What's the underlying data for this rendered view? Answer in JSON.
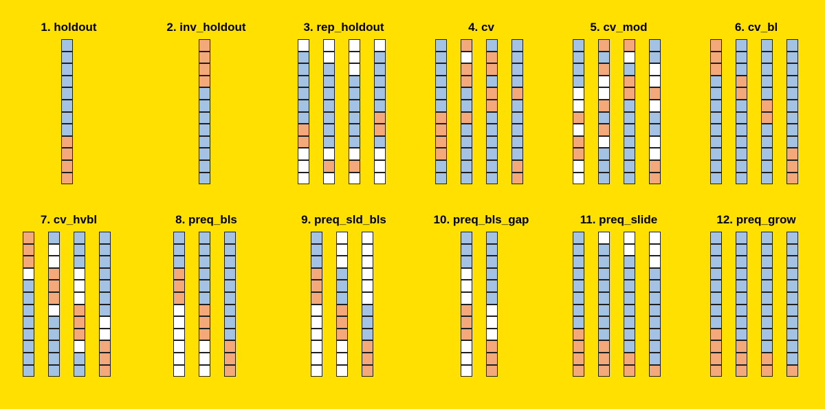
{
  "colors": {
    "train": "#A4C2E3",
    "test": "#F4A97B",
    "unused": "#FFFFFF",
    "background": "#FFE000"
  },
  "legend_codes": {
    "T": "train",
    "E": "test",
    "U": "unused"
  },
  "panels": [
    {
      "title": "1. holdout",
      "columns": [
        "TTTTTTTTEEEE"
      ]
    },
    {
      "title": "2. inv_holdout",
      "columns": [
        "EEEETTTTTTTT"
      ]
    },
    {
      "title": "3. rep_holdout",
      "columns": [
        "UTTTTTTEEUUU",
        "UUTTTTTTTUEU",
        "UUUTTTTTTUEU",
        "UTTTTTEETUUU"
      ]
    },
    {
      "title": "4. cv",
      "columns": [
        "TTTTTTEEEETT",
        "EUEETTETTTTT",
        "TEETEETTTTTT",
        "TTTTETTTTTEE"
      ]
    },
    {
      "title": "5. cv_mod",
      "columns": [
        "TTTTUUEUEEUU",
        "ETEUUETEUTTT",
        "EUTEETTTTTTT",
        "TTUUEUTTUUEE"
      ]
    },
    {
      "title": "6. cv_bl",
      "columns": [
        "EEETTTTTTTTT",
        "TTTEETTTTTTT",
        "TTTTTEETTTTT",
        "TTTTTTTTTEEE"
      ]
    },
    {
      "title": "7. cv_hvbl",
      "columns": [
        "EEEUTTTTTTTT",
        "TUUEEEUTTTTT",
        "TTTUUUEEEUTT",
        "TTTTTTTUUEEE"
      ]
    },
    {
      "title": "8. preq_bls",
      "columns": [
        "TTTEEEUUUUUU",
        "TTTTTTEEEUUU",
        "TTTTTTTTTEEE"
      ]
    },
    {
      "title": "9. preq_sld_bls",
      "columns": [
        "TTTEEEUUUUUU",
        "UUUTTTEEEUUU",
        "UUUUUUTTTEEE"
      ]
    },
    {
      "title": "10. preq_bls_gap",
      "columns": [
        "TTTUUUEEEUUU",
        "TTTTTTUUUEEE"
      ]
    },
    {
      "title": "11. preq_slide",
      "columns": [
        "TTTTTTTTEEEE",
        "UTTTTTTTTEEE",
        "UUTTTTTTTTEE",
        "UUUTTTTTTTTE"
      ]
    },
    {
      "title": "12. preq_grow",
      "columns": [
        "TTTTTTTTEEEE",
        "TTTTTTTTTEEE",
        "TTTTTTTTTTEE",
        "TTTTTTTTTTTE"
      ]
    }
  ]
}
